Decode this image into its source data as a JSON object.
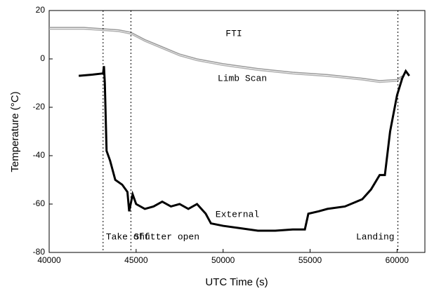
{
  "chart_data": {
    "type": "line",
    "x_label": "UTC Time (s)",
    "y_label": "Temperature (°C)",
    "xlim": [
      40000,
      61600
    ],
    "ylim": [
      -80,
      20
    ],
    "xticks": [
      40000,
      45000,
      50000,
      55000,
      60000
    ],
    "yticks": [
      20,
      0,
      -20,
      -40,
      -60,
      -80
    ],
    "series": [
      {
        "name": "FTI",
        "color": "#9a9a9a",
        "x": [
          40000,
          41000,
          42000,
          43000,
          44000,
          44700,
          45500,
          46500,
          47500,
          48500,
          50000,
          52000,
          54000,
          56000,
          58000,
          59000,
          60000,
          60300
        ],
        "values": [
          13,
          13,
          13,
          12.5,
          12,
          11,
          8,
          5,
          2,
          0,
          -2,
          -4,
          -5.5,
          -6.5,
          -8,
          -9,
          -8.5,
          -7
        ]
      },
      {
        "name": "Limb Scan",
        "color": "#b0b0b0",
        "x": [
          40000,
          41000,
          42000,
          43000,
          44000,
          44700,
          45500,
          46500,
          47500,
          48500,
          50000,
          52000,
          54000,
          56000,
          58000,
          59000,
          60000,
          60300
        ],
        "values": [
          12.3,
          12.3,
          12.3,
          11.8,
          11.3,
          10.3,
          7.3,
          4.3,
          1.3,
          -0.7,
          -2.7,
          -4.7,
          -6.2,
          -7.2,
          -8.7,
          -9.7,
          -9.2,
          -7.7
        ]
      },
      {
        "name": "External",
        "color": "#000000",
        "x": [
          41700,
          42500,
          43100,
          43150,
          43200,
          43300,
          43500,
          43800,
          44200,
          44500,
          44600,
          44800,
          45000,
          45500,
          46000,
          46500,
          47000,
          47500,
          48000,
          48500,
          49000,
          49300,
          50000,
          51000,
          52000,
          53000,
          54000,
          54700,
          54900,
          55500,
          56000,
          57000,
          58000,
          58500,
          59000,
          59300,
          59600,
          60000,
          60300,
          60500,
          60700
        ],
        "values": [
          -7,
          -6.5,
          -6,
          -3,
          -10,
          -38,
          -42,
          -50,
          -52,
          -55,
          -63,
          -56,
          -60,
          -62,
          -61,
          -59,
          -61,
          -60,
          -62,
          -60,
          -64,
          -68,
          -69,
          -70,
          -71,
          -71,
          -70.5,
          -70.5,
          -64,
          -63,
          -62,
          -61,
          -58,
          -54,
          -48,
          -48,
          -30,
          -15,
          -8,
          -5,
          -7
        ]
      }
    ],
    "events": [
      {
        "x": 43100,
        "label": "Take off"
      },
      {
        "x": 44700,
        "label": "Shutter open"
      },
      {
        "x": 60050,
        "label": "Landing"
      }
    ]
  }
}
